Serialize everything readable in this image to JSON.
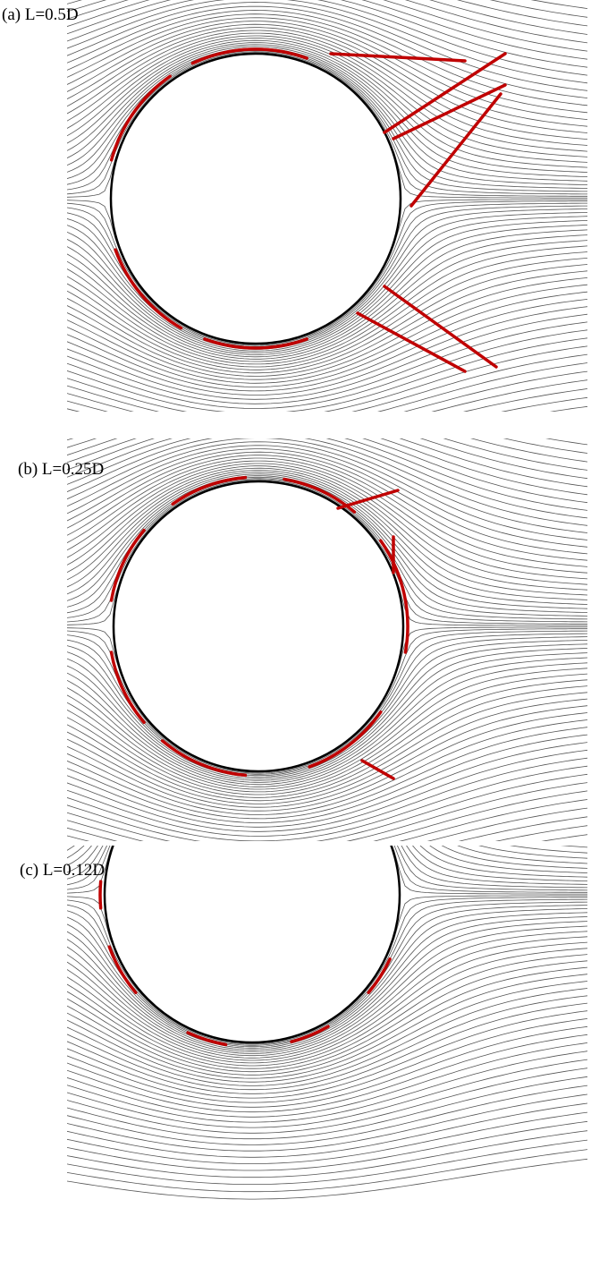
{
  "panels": [
    {
      "label": "(a) L=0.5D"
    },
    {
      "label": "(b) L=0.25D"
    },
    {
      "label": "(c) L=0.12D"
    }
  ]
}
